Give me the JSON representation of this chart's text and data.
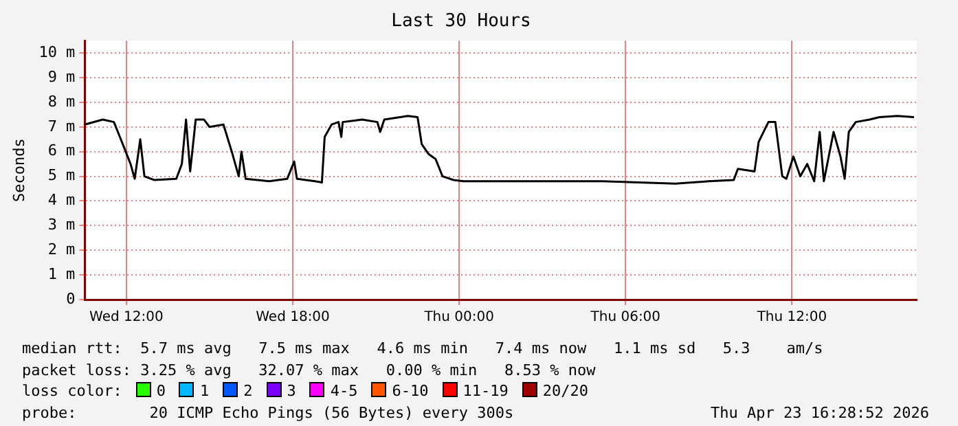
{
  "chart_data": {
    "type": "line",
    "title": "Last 30 Hours",
    "ylabel": "Seconds",
    "x": [
      "2026-04-22T10:30",
      "2026-04-22T11:09",
      "2026-04-22T11:33",
      "2026-04-22T11:48",
      "2026-04-22T12:09",
      "2026-04-22T12:18",
      "2026-04-22T12:30",
      "2026-04-22T12:39",
      "2026-04-22T13:00",
      "2026-04-22T13:48",
      "2026-04-22T14:00",
      "2026-04-22T14:09",
      "2026-04-22T14:18",
      "2026-04-22T14:30",
      "2026-04-22T14:48",
      "2026-04-22T15:00",
      "2026-04-22T15:30",
      "2026-04-22T15:48",
      "2026-04-22T16:03",
      "2026-04-22T16:09",
      "2026-04-22T16:18",
      "2026-04-22T17:09",
      "2026-04-22T17:48",
      "2026-04-22T18:03",
      "2026-04-22T18:09",
      "2026-04-22T18:48",
      "2026-04-22T19:03",
      "2026-04-22T19:09",
      "2026-04-22T19:24",
      "2026-04-22T19:39",
      "2026-04-22T19:45",
      "2026-04-22T19:48",
      "2026-04-22T20:30",
      "2026-04-22T21:03",
      "2026-04-22T21:09",
      "2026-04-22T21:18",
      "2026-04-22T22:09",
      "2026-04-22T22:30",
      "2026-04-22T22:39",
      "2026-04-22T22:54",
      "2026-04-22T23:09",
      "2026-04-22T23:24",
      "2026-04-22T23:48",
      "2026-04-23T00:09",
      "2026-04-23T01:48",
      "2026-04-23T05:09",
      "2026-04-23T07:48",
      "2026-04-23T09:00",
      "2026-04-23T09:54",
      "2026-04-23T10:03",
      "2026-04-23T10:39",
      "2026-04-23T10:48",
      "2026-04-23T11:09",
      "2026-04-23T11:24",
      "2026-04-23T11:39",
      "2026-04-23T11:48",
      "2026-04-23T12:03",
      "2026-04-23T12:18",
      "2026-04-23T12:33",
      "2026-04-23T12:48",
      "2026-04-23T13:00",
      "2026-04-23T13:09",
      "2026-04-23T13:30",
      "2026-04-23T13:45",
      "2026-04-23T13:54",
      "2026-04-23T14:03",
      "2026-04-23T14:18",
      "2026-04-23T14:48",
      "2026-04-23T15:09",
      "2026-04-23T15:48",
      "2026-04-23T16:24"
    ],
    "series": [
      {
        "color": "#000000",
        "values": [
          7.1,
          7.3,
          7.2,
          6.5,
          5.5,
          4.9,
          6.5,
          5.0,
          4.85,
          4.9,
          5.5,
          7.3,
          5.2,
          7.3,
          7.3,
          7.0,
          7.1,
          6.0,
          5.0,
          6.0,
          4.9,
          4.8,
          4.9,
          5.6,
          4.9,
          4.8,
          4.75,
          6.6,
          7.1,
          7.2,
          6.6,
          7.2,
          7.3,
          7.2,
          6.8,
          7.3,
          7.45,
          7.4,
          6.3,
          5.9,
          5.7,
          5.0,
          4.85,
          4.8,
          4.8,
          4.8,
          4.7,
          4.8,
          4.85,
          5.3,
          5.2,
          6.4,
          7.2,
          7.2,
          5.0,
          4.9,
          5.8,
          5.0,
          5.5,
          4.8,
          6.8,
          4.8,
          6.8,
          5.8,
          4.9,
          6.8,
          7.2,
          7.3,
          7.4,
          7.45,
          7.4
        ]
      }
    ],
    "xlim": [
      "2026-04-22T10:30",
      "2026-04-23T16:30"
    ],
    "xticks": [
      {
        "value": "2026-04-22T12:00",
        "label": "Wed 12:00"
      },
      {
        "value": "2026-04-22T18:00",
        "label": "Wed 18:00"
      },
      {
        "value": "2026-04-23T00:00",
        "label": "Thu 00:00"
      },
      {
        "value": "2026-04-23T06:00",
        "label": "Thu 06:00"
      },
      {
        "value": "2026-04-23T12:00",
        "label": "Thu 12:00"
      }
    ],
    "ylim": [
      0,
      10.5
    ],
    "yticks": [
      0,
      {
        "value": 1,
        "label": "1 m"
      },
      {
        "value": 2,
        "label": "2 m"
      },
      {
        "value": 3,
        "label": "3 m"
      },
      {
        "value": 4,
        "label": "4 m"
      },
      {
        "value": 5,
        "label": "5 m"
      },
      {
        "value": 6,
        "label": "6 m"
      },
      {
        "value": 7,
        "label": "7 m"
      },
      {
        "value": 8,
        "label": "8 m"
      },
      {
        "value": 9,
        "label": "9 m"
      },
      {
        "value": 10,
        "label": "10 m"
      }
    ],
    "grid": true,
    "legend": false,
    "marker": "none",
    "line_style": "solid",
    "annotations": [
      "median rtt:  5.7 ms avg   7.5 ms max   4.6 ms min   7.4 ms now   1.1 ms sd   5.3    am/s",
      "packet loss: 3.25 % avg   32.07 % max   0.00 % min   8.53 % now",
      "loss color:",
      "0",
      "1",
      "2",
      "3",
      "4-5",
      "6-10",
      "11-19",
      "20/20",
      "probe:        20 ICMP Echo Pings (56 Bytes) every 300s",
      "Thu Apr 23 16:28:52 2026"
    ]
  }
}
